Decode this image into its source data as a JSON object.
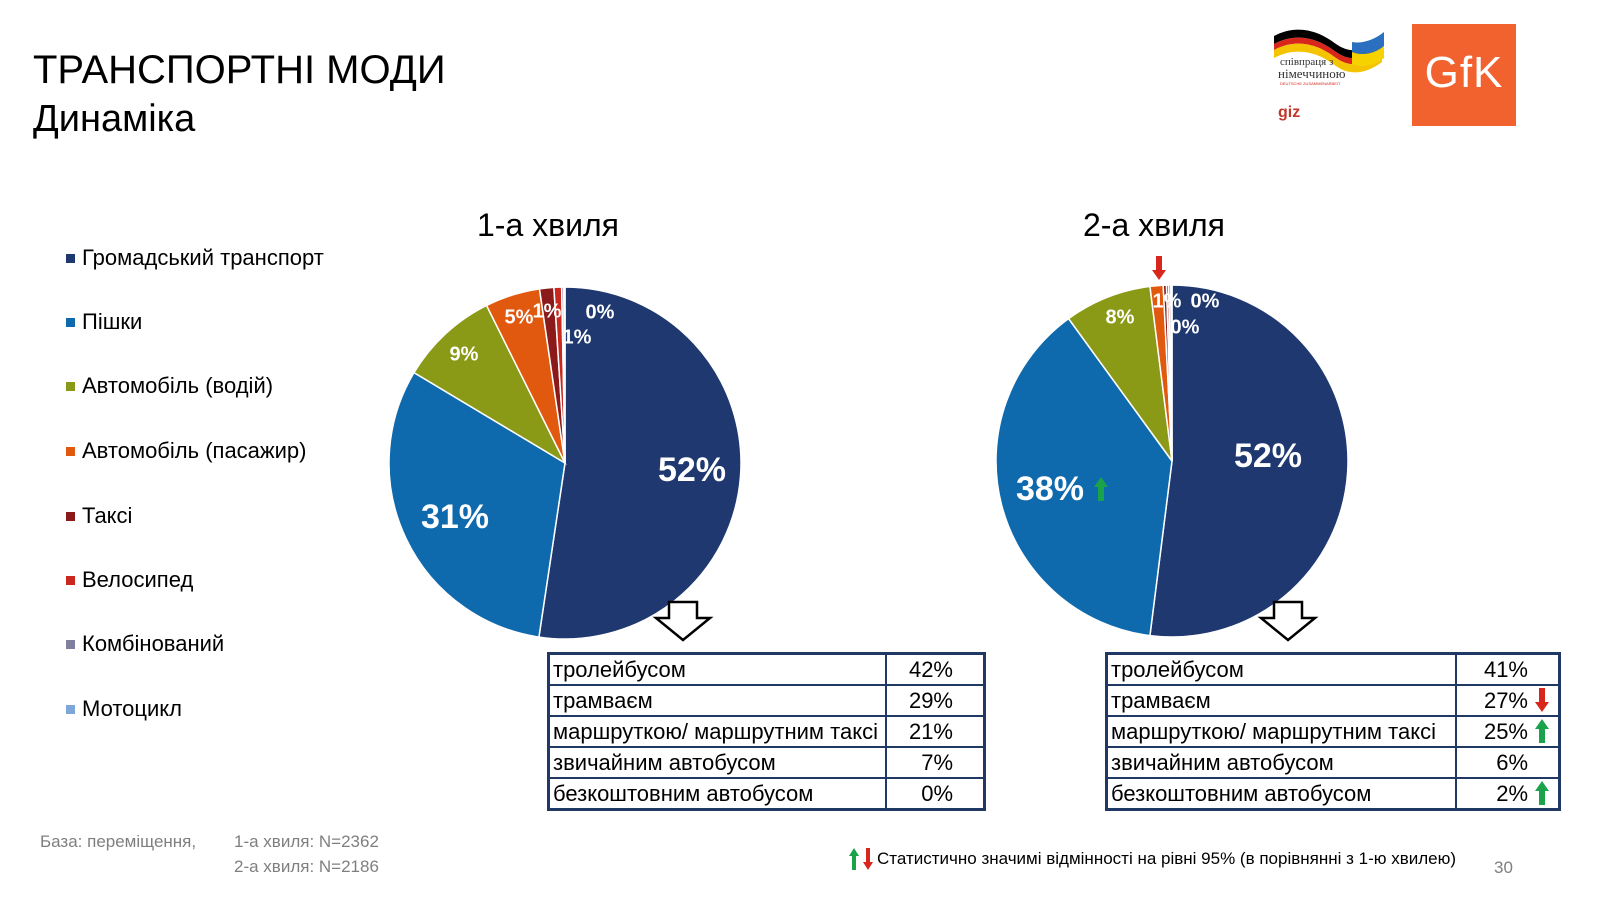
{
  "header": {
    "title": "ТРАНСПОРТНІ МОДИ",
    "subtitle": "Динаміка"
  },
  "logos": {
    "giz_line1": "співпраця з",
    "giz_line2": "німеччиною",
    "giz_line3": "DEUTSCHE ZUSAMMENARBEIT",
    "giz_text": "giz",
    "gfk_text": "GfK"
  },
  "legend": {
    "items": [
      {
        "label": "Громадський транспорт",
        "color": "#1f3870"
      },
      {
        "label": "Пішки",
        "color": "#0e6aad"
      },
      {
        "label": "Автомобіль (водій)",
        "color": "#8b9a16"
      },
      {
        "label": "Автомобіль (пасажир)",
        "color": "#e0590f"
      },
      {
        "label": "Таксі",
        "color": "#8b1a1a"
      },
      {
        "label": "Велосипед",
        "color": "#c8281e"
      },
      {
        "label": "Комбінований",
        "color": "#7f7f9f"
      },
      {
        "label": "Мотоцикл",
        "color": "#7ea6d8"
      }
    ]
  },
  "chart_data": [
    {
      "type": "pie",
      "title": "1-а хвиля",
      "categories": [
        "Громадський транспорт",
        "Пішки",
        "Автомобіль (водій)",
        "Автомобіль (пасажир)",
        "Таксі",
        "Велосипед",
        "Комбінований",
        "Мотоцикл"
      ],
      "values": [
        52,
        31,
        9,
        5,
        1.3,
        0.7,
        0.2,
        0.1
      ],
      "labels": [
        "52%",
        "31%",
        "9%",
        "5%",
        "1%",
        "1%",
        "0%",
        ""
      ]
    },
    {
      "type": "pie",
      "title": "2-а хвиля",
      "categories": [
        "Громадський транспорт",
        "Пішки",
        "Автомобіль (водій)",
        "Автомобіль (пасажир)",
        "Таксі",
        "Велосипед",
        "Комбінований",
        "Мотоцикл"
      ],
      "values": [
        52,
        38,
        8,
        1.2,
        0.3,
        0.2,
        0.2,
        0.1
      ],
      "labels": [
        "52%",
        "38%",
        "8%",
        "1%",
        "0%",
        "0%",
        "",
        ""
      ],
      "significance": {
        "Пішки": "up",
        "Автомобіль (пасажир)": "down"
      }
    },
    {
      "type": "table",
      "wave": "1-а хвиля",
      "rows": [
        {
          "label": "тролейбусом",
          "value": "42%",
          "sig": ""
        },
        {
          "label": "трамваєм",
          "value": "29%",
          "sig": ""
        },
        {
          "label": "маршруткою/ маршрутним таксі",
          "value": "21%",
          "sig": ""
        },
        {
          "label": "звичайним автобусом",
          "value": "7%",
          "sig": ""
        },
        {
          "label": "безкоштовним автобусом",
          "value": "0%",
          "sig": ""
        }
      ]
    },
    {
      "type": "table",
      "wave": "2-а хвиля",
      "rows": [
        {
          "label": "тролейбусом",
          "value": "41%",
          "sig": ""
        },
        {
          "label": "трамваєм",
          "value": "27%",
          "sig": "down"
        },
        {
          "label": "маршруткою/ маршрутним таксі",
          "value": "25%",
          "sig": "up"
        },
        {
          "label": "звичайним автобусом",
          "value": "6%",
          "sig": ""
        },
        {
          "label": "безкоштовним автобусом",
          "value": "2%",
          "sig": "up"
        }
      ]
    }
  ],
  "base": {
    "label": "База: переміщення,",
    "wave1": "1-а хвиля: N=2362",
    "wave2": "2-а хвиля: N=2186"
  },
  "footnote": "Статистично значимі відмінності на рівні 95% (в порівнянні з 1-ю хвилею)",
  "page_number": "30",
  "colors": {
    "up": "#1aa34a",
    "down": "#d9261c",
    "table_border": "#1f3864"
  }
}
